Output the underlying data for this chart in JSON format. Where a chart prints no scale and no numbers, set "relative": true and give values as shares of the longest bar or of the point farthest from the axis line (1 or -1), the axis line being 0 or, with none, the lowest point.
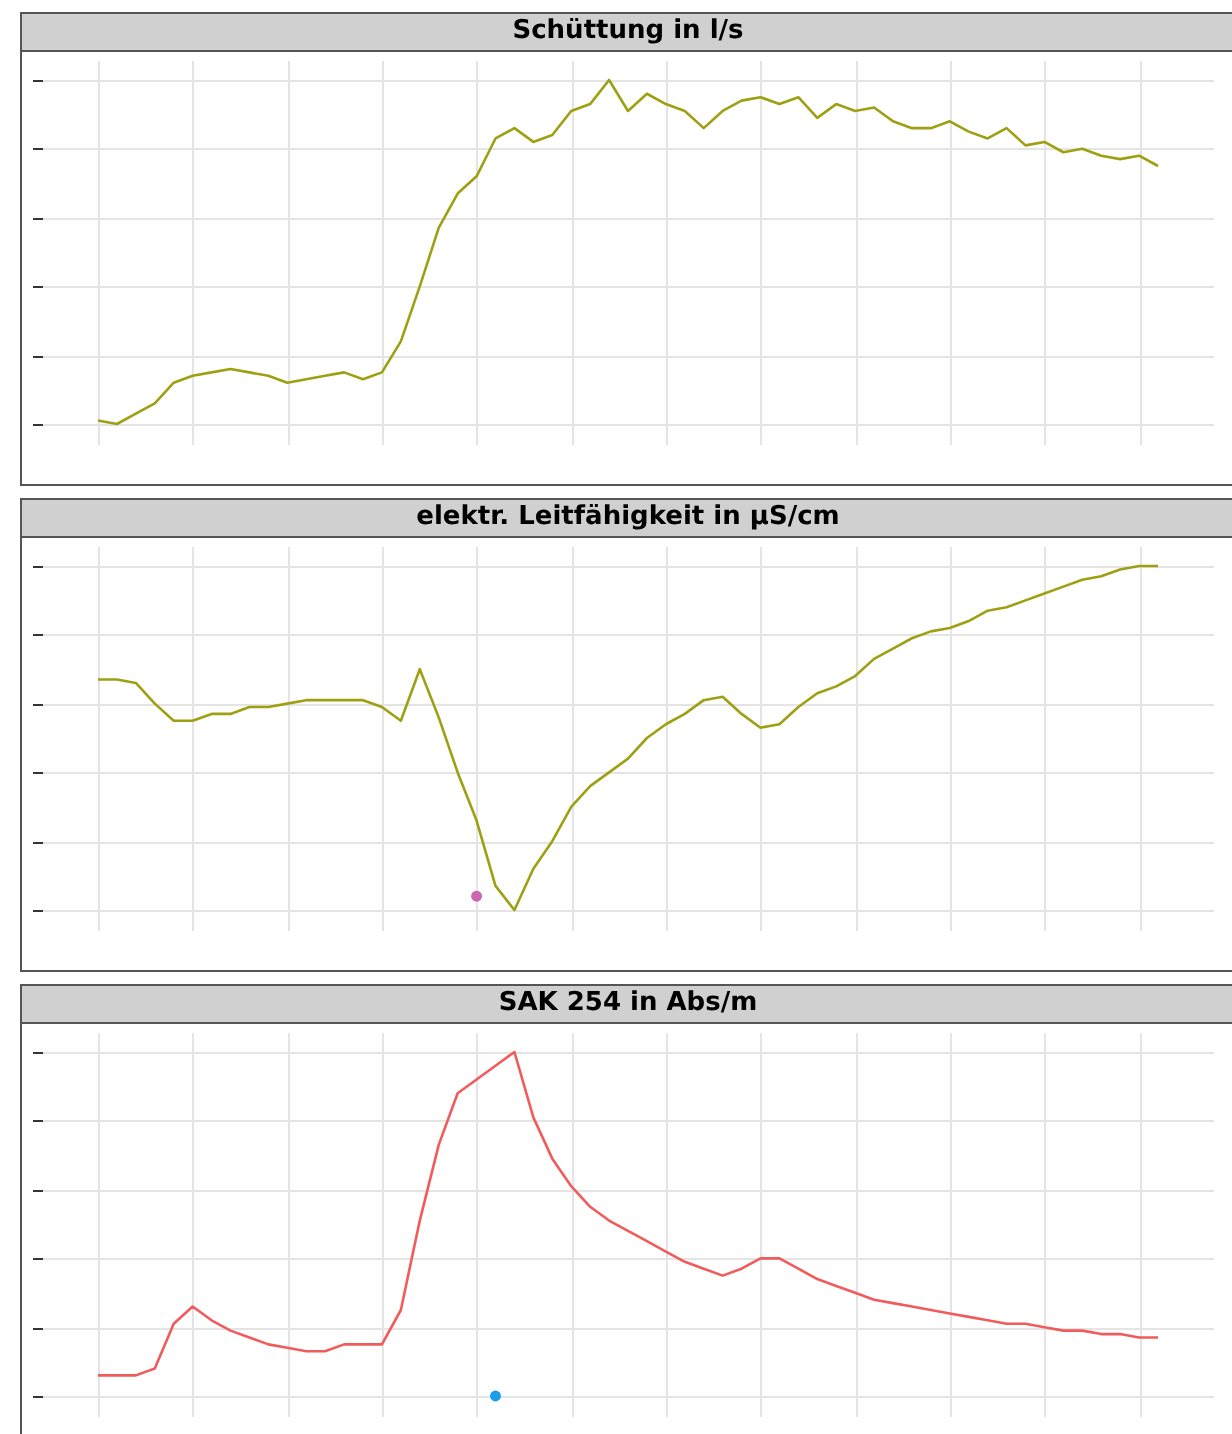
{
  "chart_data": [
    {
      "type": "line",
      "title": "Schüttung in l/s",
      "relative": true,
      "grid": true,
      "categories": [
        null,
        null,
        null,
        null,
        null,
        null,
        null,
        null,
        null,
        null,
        null,
        null,
        null,
        null,
        null,
        null,
        null,
        null,
        null,
        null,
        null,
        null,
        null,
        null,
        null,
        null,
        null,
        null,
        null,
        null,
        null,
        null,
        null,
        null,
        null,
        null,
        null,
        null,
        null,
        null,
        null,
        null,
        null,
        null,
        null,
        null,
        null,
        null,
        null,
        null,
        null,
        null,
        null,
        null,
        null,
        null,
        null
      ],
      "series": [
        {
          "color": "#9ea012",
          "values": [
            0.01,
            0,
            0.03,
            0.06,
            0.12,
            0.14,
            0.15,
            0.16,
            0.15,
            0.14,
            0.12,
            0.13,
            0.14,
            0.15,
            0.13,
            0.15,
            0.24,
            0.4,
            0.57,
            0.67,
            0.72,
            0.83,
            0.86,
            0.82,
            0.84,
            0.91,
            0.93,
            1,
            0.91,
            0.96,
            0.93,
            0.91,
            0.86,
            0.91,
            0.94,
            0.95,
            0.93,
            0.95,
            0.89,
            0.93,
            0.91,
            0.92,
            0.88,
            0.86,
            0.86,
            0.88,
            0.85,
            0.83,
            0.86,
            0.81,
            0.82,
            0.79,
            0.8,
            0.78,
            0.77,
            0.78,
            0.75
          ]
        }
      ]
    },
    {
      "type": "line",
      "title": "elektr. Leitfähigkeit in µS/cm",
      "relative": true,
      "grid": true,
      "categories": [
        null,
        null,
        null,
        null,
        null,
        null,
        null,
        null,
        null,
        null,
        null,
        null,
        null,
        null,
        null,
        null,
        null,
        null,
        null,
        null,
        null,
        null,
        null,
        null,
        null,
        null,
        null,
        null,
        null,
        null,
        null,
        null,
        null,
        null,
        null,
        null,
        null,
        null,
        null,
        null,
        null,
        null,
        null,
        null,
        null,
        null,
        null,
        null,
        null,
        null,
        null,
        null,
        null,
        null,
        null,
        null,
        null
      ],
      "series": [
        {
          "color": "#9ea012",
          "values": [
            0.67,
            0.67,
            0.66,
            0.6,
            0.55,
            0.55,
            0.57,
            0.57,
            0.59,
            0.59,
            0.6,
            0.61,
            0.61,
            0.61,
            0.61,
            0.59,
            0.55,
            0.7,
            0.56,
            0.4,
            0.26,
            0.07,
            0,
            0.12,
            0.2,
            0.3,
            0.36,
            0.4,
            0.44,
            0.5,
            0.54,
            0.57,
            0.61,
            0.62,
            0.57,
            0.53,
            0.54,
            0.59,
            0.63,
            0.65,
            0.68,
            0.73,
            0.76,
            0.79,
            0.81,
            0.82,
            0.84,
            0.87,
            0.88,
            0.9,
            0.92,
            0.94,
            0.96,
            0.97,
            0.99,
            1,
            1
          ]
        },
        {
          "type": "scatter",
          "color": "#cc66b0",
          "values": [
            null,
            null,
            null,
            null,
            null,
            null,
            null,
            null,
            null,
            null,
            null,
            null,
            null,
            null,
            null,
            null,
            null,
            null,
            null,
            null,
            0.04,
            null,
            null,
            null,
            null,
            null,
            null,
            null,
            null,
            null,
            null,
            null,
            null,
            null,
            null,
            null,
            null,
            null,
            null,
            null,
            null,
            null,
            null,
            null,
            null,
            null,
            null,
            null,
            null,
            null,
            null,
            null,
            null,
            null,
            null,
            null,
            null
          ]
        }
      ]
    },
    {
      "type": "line",
      "title": "SAK 254 in Abs/m",
      "relative": true,
      "grid": true,
      "categories": [
        null,
        null,
        null,
        null,
        null,
        null,
        null,
        null,
        null,
        null,
        null,
        null,
        null,
        null,
        null,
        null,
        null,
        null,
        null,
        null,
        null,
        null,
        null,
        null,
        null,
        null,
        null,
        null,
        null,
        null,
        null,
        null,
        null,
        null,
        null,
        null,
        null,
        null,
        null,
        null,
        null,
        null,
        null,
        null,
        null,
        null,
        null,
        null,
        null,
        null,
        null,
        null,
        null,
        null,
        null,
        null,
        null
      ],
      "series": [
        {
          "color": "#f25b5b",
          "values": [
            0.06,
            0.06,
            0.06,
            0.08,
            0.21,
            0.26,
            0.22,
            0.19,
            0.17,
            0.15,
            0.14,
            0.13,
            0.13,
            0.15,
            0.15,
            0.15,
            0.25,
            0.51,
            0.73,
            0.88,
            0.92,
            0.96,
            1,
            0.81,
            0.69,
            0.61,
            0.55,
            0.51,
            0.48,
            0.45,
            0.42,
            0.39,
            0.37,
            0.35,
            0.37,
            0.4,
            0.4,
            0.37,
            0.34,
            0.32,
            0.3,
            0.28,
            0.27,
            0.26,
            0.25,
            0.24,
            0.23,
            0.22,
            0.21,
            0.21,
            0.2,
            0.19,
            0.19,
            0.18,
            0.18,
            0.17,
            0.17
          ]
        },
        {
          "type": "scatter",
          "color": "#1a9ee8",
          "values": [
            null,
            null,
            null,
            null,
            null,
            null,
            null,
            null,
            null,
            null,
            null,
            null,
            null,
            null,
            null,
            null,
            null,
            null,
            null,
            null,
            null,
            0,
            null,
            null,
            null,
            null,
            null,
            null,
            null,
            null,
            null,
            null,
            null,
            null,
            null,
            null,
            null,
            null,
            null,
            null,
            null,
            null,
            null,
            null,
            null,
            null,
            null,
            null,
            null,
            null,
            null,
            null,
            null,
            null,
            null,
            null,
            null
          ]
        }
      ]
    }
  ]
}
